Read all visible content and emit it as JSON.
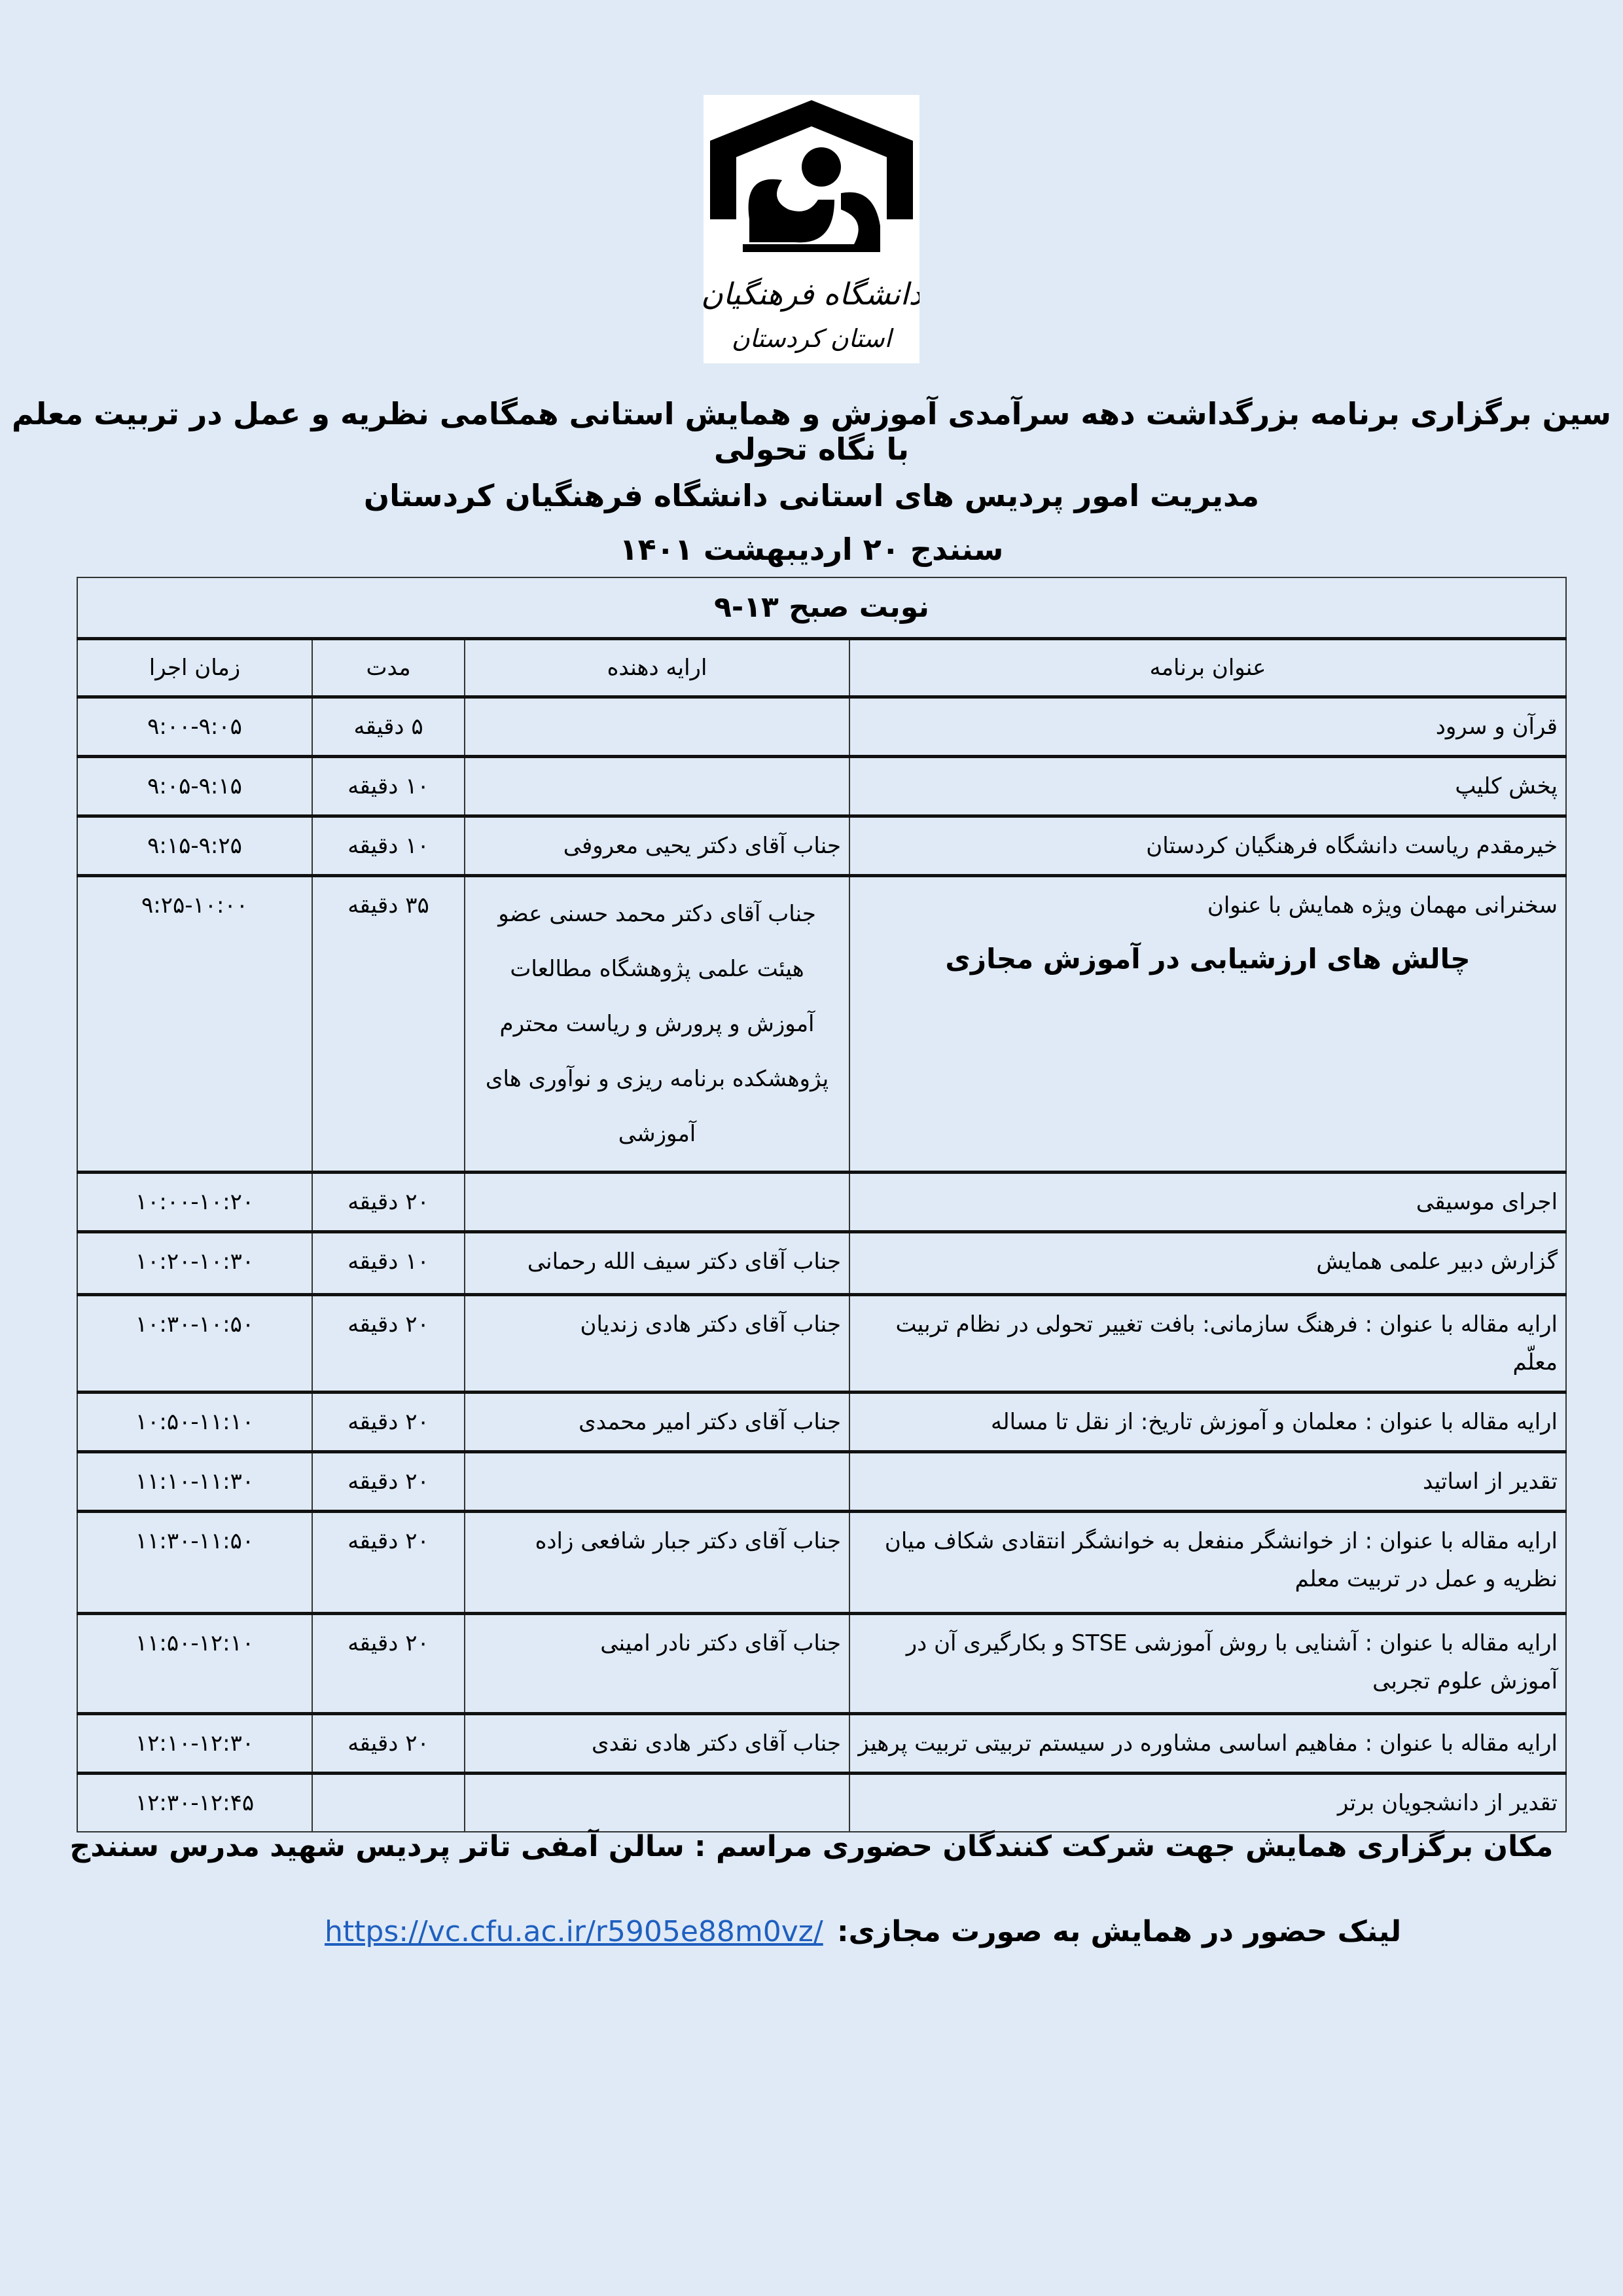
{
  "logo": {
    "text_line1": "دانشگاه فرهنگیان",
    "text_line2": "استان کردستان"
  },
  "header": {
    "title": "سین برگزاری برنامه بزرگداشت دهه سرآمدی آموزش و همایش استانی همگامی نظریه و عمل در تربیت معلم با نگاه تحولی",
    "organizer": "مدیریت امور پردیس های استانی دانشگاه فرهنگیان کردستان",
    "date": "سنندج ۲۰ اردیبهشت ۱۴۰۱"
  },
  "table": {
    "shift": "نوبت صبح ۱۳-۹",
    "columns": [
      "عنوان برنامه",
      "ارایه دهنده",
      "مدت",
      "زمان اجرا"
    ],
    "rows": [
      {
        "title": "قرآن و سرود",
        "presenter": "",
        "duration": "۵ دقیقه",
        "time": "۹:۰۰-۹:۰۵"
      },
      {
        "title": "پخش کلیپ",
        "presenter": "",
        "duration": "۱۰ دقیقه",
        "time": "۹:۰۵-۹:۱۵"
      },
      {
        "title": "خیرمقدم ریاست دانشگاه فرهنگیان کردستان",
        "presenter": "جناب آقای دکتر یحیی معروفی",
        "duration": "۱۰ دقیقه",
        "time": "۹:۱۵-۹:۲۵"
      },
      {
        "title": "سخنرانی  مهمان ویژه همایش با عنوان",
        "subtitle": "چالش های ارزشیابی در آموزش مجازی",
        "presenter": "جناب آقای  دکتر محمد حسنی عضو هیئت علمی پژوهشگاه مطالعات آموزش و پرورش و ریاست محترم پژوهشکده برنامه ریزی و نوآوری های آموزشی",
        "duration": "۳۵ دقیقه",
        "time": "۹:۲۵-۱۰:۰۰"
      },
      {
        "title": "اجرای موسیقی",
        "presenter": "",
        "duration": "۲۰ دقیقه",
        "time": "۱۰:۰۰-۱۰:۲۰"
      },
      {
        "title": "گزارش دبیر علمی همایش",
        "presenter": "جناب آقای دکتر سیف الله رحمانی",
        "duration": "۱۰ دقیقه",
        "time": "۱۰:۲۰-۱۰:۳۰"
      },
      {
        "title": "ارایه مقاله با عنوان : فرهنگ سازمانی: بافت تغییر تحولی در نظام تربیت معلّم",
        "presenter": "جناب آقای دکتر هادی زندیان",
        "duration": "۲۰ دقیقه",
        "time": "۱۰:۳۰-۱۰:۵۰"
      },
      {
        "title": "ارایه مقاله با عنوان : معلمان و آموزش تاریخ: از نقل تا مساله",
        "presenter": "جناب آقای دکتر  امیر محمدی",
        "duration": "۲۰ دقیقه",
        "time": "۱۰:۵۰-۱۱:۱۰"
      },
      {
        "title": "تقدیر از اساتید",
        "presenter": "",
        "duration": "۲۰ دقیقه",
        "time": "۱۱:۱۰-۱۱:۳۰"
      },
      {
        "title": "ارایه مقاله با عنوان : از خوانشگر منفعل به خوانشگر انتقادی شکاف میان نظریه و عمل در تربیت معلم",
        "presenter": "جناب آقای دکتر جبار شافعی زاده",
        "duration": "۲۰ دقیقه",
        "time": "۱۱:۳۰-۱۱:۵۰"
      },
      {
        "title": "ارایه مقاله با عنوان : آشنایی با روش آموزشی STSE و بکارگیری آن در آموزش علوم تجربی",
        "presenter": "جناب آقای دکتر  نادر امینی",
        "duration": "۲۰ دقیقه",
        "time": "۱۱:۵۰-۱۲:۱۰"
      },
      {
        "title": "ارایه مقاله با عنوان : مفاهیم اساسی مشاوره در سیستم تربیتی تربیت پرهیز",
        "presenter": "جناب آقای دکتر  هادی نقدی",
        "duration": "۲۰ دقیقه",
        "time": "۱۲:۱۰-۱۲:۳۰"
      },
      {
        "title": "تقدیر از دانشجویان برتر",
        "presenter": "",
        "duration": "",
        "time": "۱۲:۳۰-۱۲:۴۵"
      }
    ]
  },
  "footer": {
    "location": "مکان برگزاری همایش جهت شرکت کنندگان حضوری مراسم : سالن آمفی تاتر پردیس شهید مدرس سنندج",
    "link_label": "لینک حضور در همایش به صورت مجازی:",
    "link_url": "https://vc.cfu.ac.ir/r5905e88m0vz/",
    "link_color": "#1f5fbf"
  },
  "colors": {
    "background": "#dfeaf6"
  }
}
